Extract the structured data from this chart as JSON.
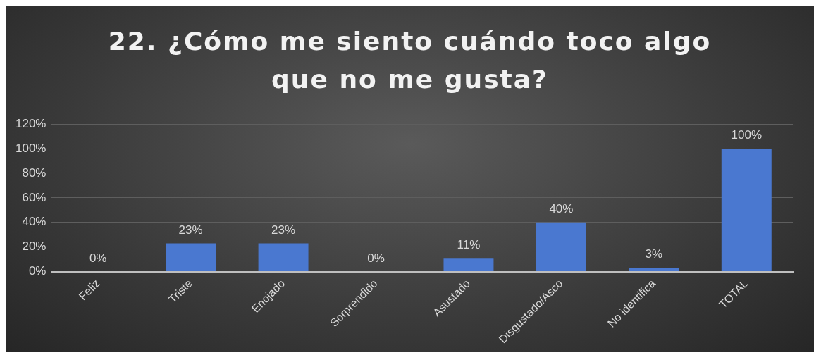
{
  "chart_data": {
    "type": "bar",
    "title": "22. ¿Cómo me siento cuándo toco algo que no me gusta?",
    "categories": [
      "Feliz",
      "Triste",
      "Enojado",
      "Sorprendido",
      "Asustado",
      "Disgustado/Asco",
      "No identifica",
      "TOTAL"
    ],
    "values": [
      0,
      23,
      23,
      0,
      11,
      40,
      3,
      100
    ],
    "value_labels": [
      "0%",
      "23%",
      "23%",
      "0%",
      "11%",
      "40%",
      "3%",
      "100%"
    ],
    "color": "#4a78d0",
    "ylim": [
      0,
      120
    ],
    "yticks": [
      {
        "value": 0,
        "label": "0%"
      },
      {
        "value": 20,
        "label": "20%"
      },
      {
        "value": 40,
        "label": "40%"
      },
      {
        "value": 60,
        "label": "60%"
      },
      {
        "value": 80,
        "label": "80%"
      },
      {
        "value": 100,
        "label": "100%"
      },
      {
        "value": 120,
        "label": "120%"
      }
    ],
    "grid": "y",
    "legend": false
  }
}
